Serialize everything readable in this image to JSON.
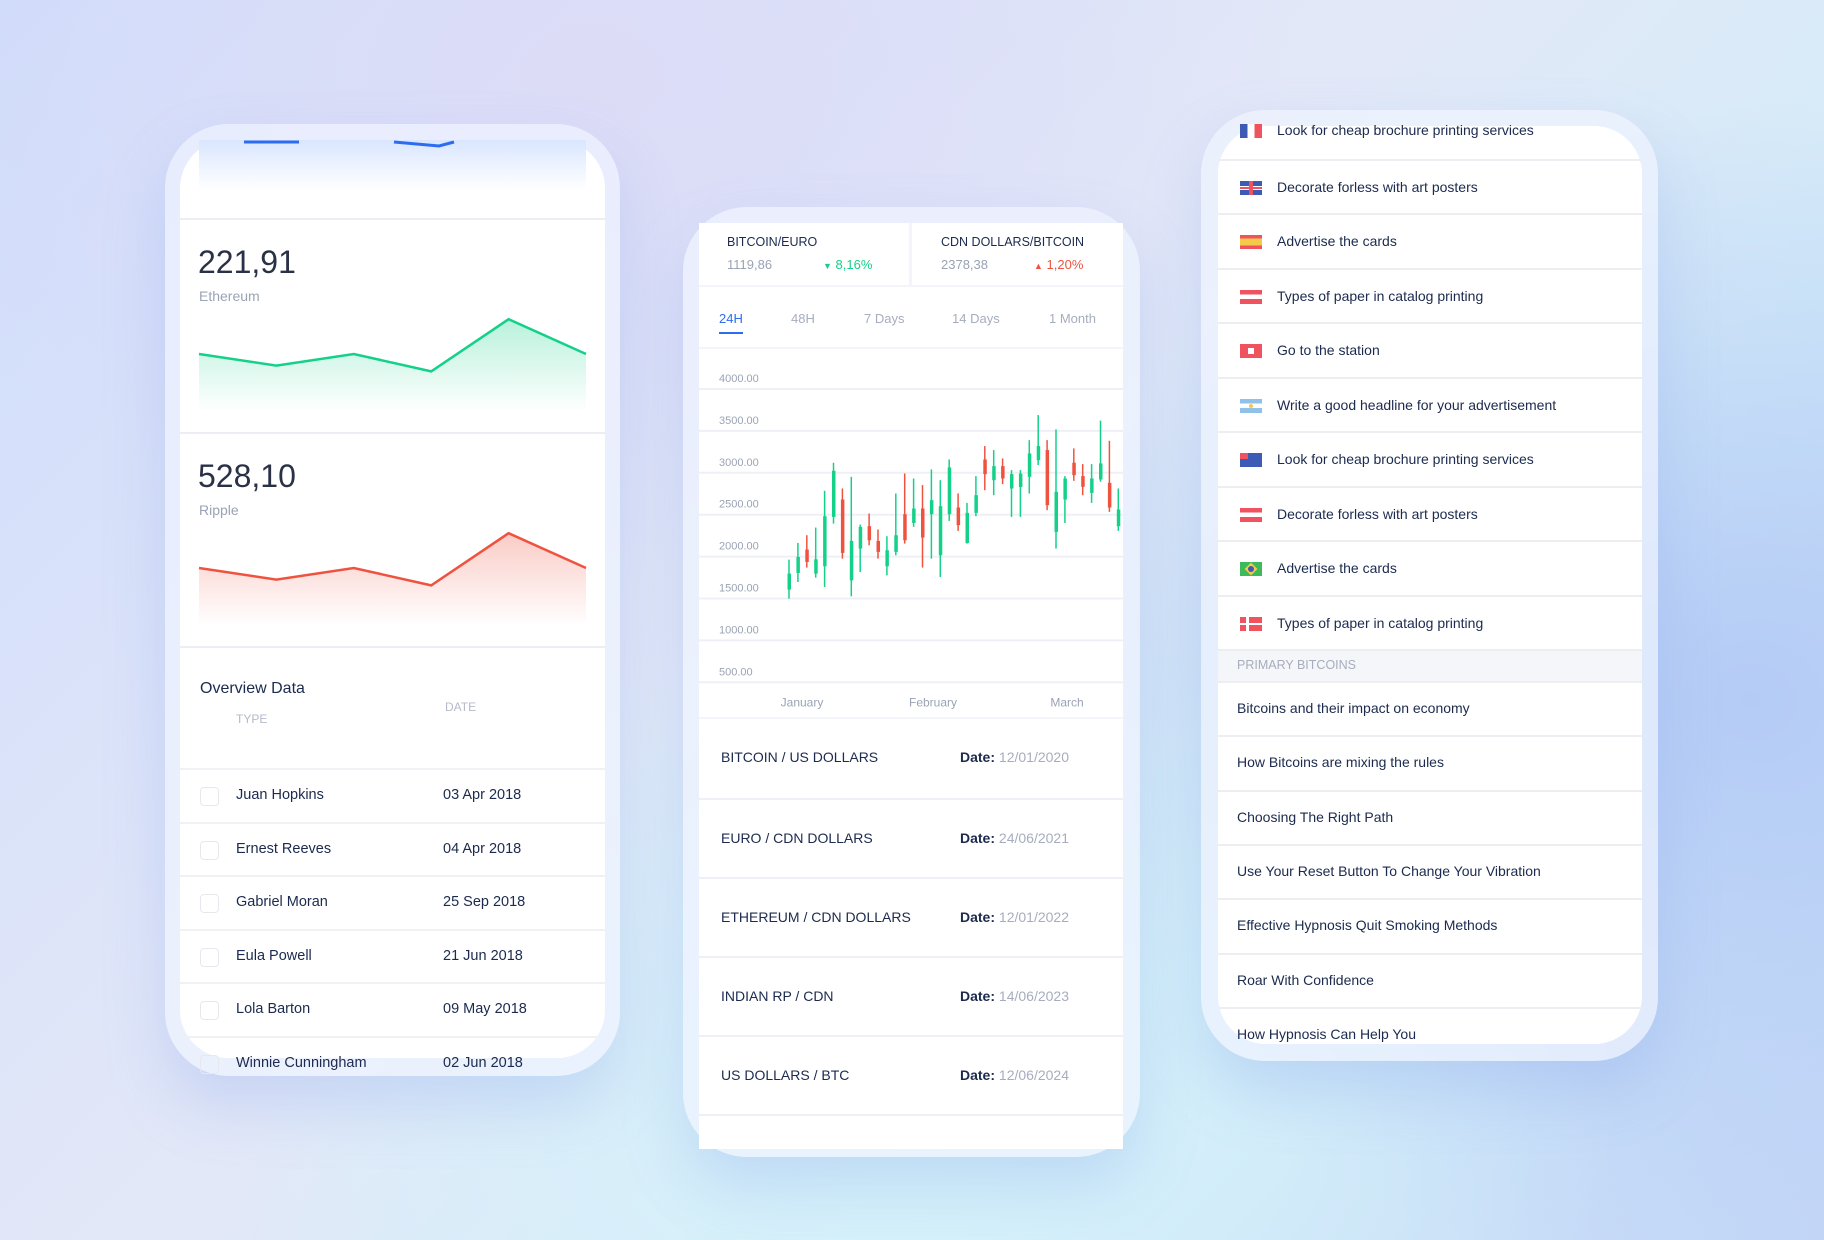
{
  "left_phone": {
    "cards": [
      {
        "value": "221,91",
        "label": "Ethereum",
        "color": "#14d18a",
        "spark": [
          40,
          36,
          40,
          34,
          52,
          40
        ]
      },
      {
        "value": "528,10",
        "label": "Ripple",
        "color": "#ef5340",
        "spark": [
          40,
          36,
          40,
          34,
          52,
          40
        ]
      }
    ],
    "overview": {
      "title": "Overview Data",
      "col_type": "TYPE",
      "col_date": "DATE",
      "rows": [
        {
          "name": "Juan Hopkins",
          "date": "03 Apr 2018"
        },
        {
          "name": "Ernest Reeves",
          "date": "04 Apr 2018"
        },
        {
          "name": "Gabriel Moran",
          "date": "25 Sep 2018"
        },
        {
          "name": "Eula Powell",
          "date": "21 Jun 2018"
        },
        {
          "name": "Lola Barton",
          "date": "09 May 2018"
        },
        {
          "name": "Winnie Cunningham",
          "date": "02 Jun 2018"
        }
      ]
    }
  },
  "middle_phone": {
    "tickers": [
      {
        "pair": "BITCOIN/EURO",
        "price": "1119,86",
        "change": "8,16%",
        "direction": "down",
        "color": "#14d18a"
      },
      {
        "pair": "CDN DOLLARS/BITCOIN",
        "price": "2378,38",
        "change": "1,20%",
        "direction": "up",
        "color": "#ef5340"
      }
    ],
    "tabs": [
      {
        "label": "24H",
        "active": true
      },
      {
        "label": "48H"
      },
      {
        "label": "7 Days"
      },
      {
        "label": "14 Days"
      },
      {
        "label": "1 Month"
      }
    ],
    "pairs": [
      {
        "name": "BITCOIN / US DOLLARS",
        "date_label": "Date:",
        "date": "12/01/2020"
      },
      {
        "name": "EURO / CDN DOLLARS",
        "date_label": "Date:",
        "date": "24/06/2021"
      },
      {
        "name": "ETHEREUM / CDN DOLLARS",
        "date_label": "Date:",
        "date": "12/01/2022"
      },
      {
        "name": "INDIAN RP / CDN",
        "date_label": "Date:",
        "date": "14/06/2023"
      },
      {
        "name": "US DOLLARS / BTC",
        "date_label": "Date:",
        "date": "12/06/2024"
      }
    ]
  },
  "chart_data": {
    "type": "candlestick",
    "ylim": [
      500,
      4000
    ],
    "y_ticks": [
      "4000.00",
      "3500.00",
      "3000.00",
      "2500.00",
      "2000.00",
      "1500.00",
      "1000.00",
      "500.00"
    ],
    "x_ticks": [
      "January",
      "February",
      "March"
    ],
    "grid": true,
    "up_color": "#14d18a",
    "down_color": "#ef5340",
    "candles": [
      [
        1606,
        1964,
        1498,
        1797
      ],
      [
        1805,
        2163,
        1697,
        1996
      ],
      [
        2084,
        2255,
        1869,
        1936
      ],
      [
        1797,
        2347,
        1749,
        1968
      ],
      [
        1885,
        2785,
        1637,
        2482
      ],
      [
        2474,
        3120,
        2394,
        3024
      ],
      [
        2681,
        2813,
        1976,
        2044
      ],
      [
        1717,
        2952,
        1526,
        2187
      ],
      [
        2096,
        2382,
        1817,
        2355
      ],
      [
        2363,
        2514,
        2135,
        2195
      ],
      [
        2187,
        2323,
        1976,
        2056
      ],
      [
        1885,
        2243,
        1777,
        2076
      ],
      [
        2056,
        2753,
        2016,
        2255
      ],
      [
        2506,
        2992,
        2155,
        2195
      ],
      [
        2402,
        2932,
        2355,
        2574
      ],
      [
        2574,
        2853,
        1869,
        2227
      ],
      [
        2506,
        3040,
        1976,
        2673
      ],
      [
        2016,
        2912,
        1757,
        2602
      ],
      [
        2506,
        3159,
        2426,
        3064
      ],
      [
        2586,
        2753,
        2307,
        2375
      ],
      [
        2163,
        2641,
        2155,
        2522
      ],
      [
        2522,
        2960,
        2482,
        2733
      ],
      [
        3159,
        3319,
        2793,
        2984
      ],
      [
        2912,
        3271,
        2733,
        3080
      ],
      [
        3080,
        3171,
        2865,
        2932
      ],
      [
        2813,
        3032,
        2474,
        2984
      ],
      [
        2830,
        3032,
        2474,
        2990
      ],
      [
        2952,
        3390,
        2753,
        3231
      ],
      [
        3151,
        3689,
        3092,
        3319
      ],
      [
        3271,
        3390,
        2554,
        2614
      ],
      [
        2295,
        3518,
        2096,
        2773
      ],
      [
        2681,
        2960,
        2402,
        2932
      ],
      [
        3120,
        3291,
        2904,
        2972
      ],
      [
        2960,
        3104,
        2733,
        2833
      ],
      [
        2761,
        3104,
        2641,
        2932
      ],
      [
        2920,
        3622,
        2893,
        3112
      ],
      [
        2880,
        3382,
        2534,
        2586
      ],
      [
        2363,
        2813,
        2307,
        2562
      ]
    ]
  },
  "right_phone": {
    "items": [
      {
        "flag": "france",
        "text": "Look for cheap brochure printing services"
      },
      {
        "flag": "uk",
        "text": "Decorate forless with art posters"
      },
      {
        "flag": "spain",
        "text": "Advertise the cards"
      },
      {
        "flag": "austria",
        "text": "Types of paper in catalog printing"
      },
      {
        "flag": "switzerland",
        "text": "Go to the station"
      },
      {
        "flag": "argentina",
        "text": "Write a good headline for your advertisement"
      },
      {
        "flag": "australia",
        "text": "Look for cheap brochure printing services"
      },
      {
        "flag": "austria",
        "text": "Decorate forless with art posters"
      },
      {
        "flag": "brazil",
        "text": "Advertise the cards"
      },
      {
        "flag": "denmark",
        "text": "Types of paper in catalog printing"
      }
    ],
    "section_title": "PRIMARY BITCOINS",
    "articles": [
      "Bitcoins and their impact on economy",
      "How Bitcoins are mixing the rules",
      "Choosing The Right Path",
      "Use Your Reset Button To Change Your Vibration",
      "Effective Hypnosis Quit Smoking Methods",
      "Roar With Confidence",
      "How Hypnosis Can Help You"
    ]
  }
}
